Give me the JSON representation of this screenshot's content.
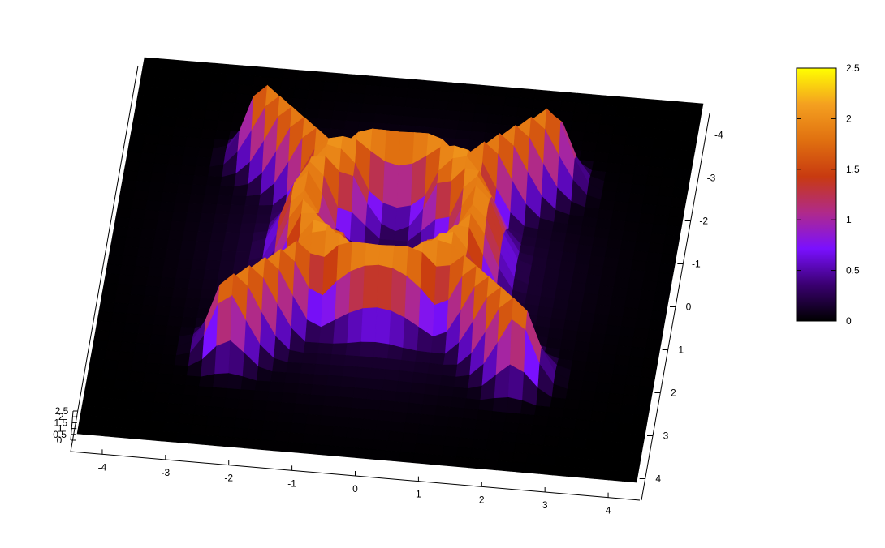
{
  "chart_data": {
    "type": "surface",
    "title": "",
    "view": "3d-pm3d",
    "x_axis": {
      "range": [
        -4.5,
        4.5
      ],
      "ticks": [
        -4,
        -3,
        -2,
        -1,
        0,
        1,
        2,
        3,
        4
      ]
    },
    "y_axis": {
      "range": [
        -4.5,
        4.5
      ],
      "ticks": [
        -4,
        -3,
        -2,
        -1,
        0,
        1,
        2,
        3,
        4
      ]
    },
    "z_axis": {
      "range": [
        0,
        2.5
      ],
      "ticks": [
        "0",
        "0.5",
        "1",
        "1.5",
        "2",
        "2.5"
      ]
    },
    "grid_resolution": 41,
    "surface_model": {
      "description_free": true,
      "rings": [
        {
          "center": [
            0,
            0
          ],
          "radius": 1.4,
          "width": 0.45,
          "height": 2.1
        }
      ],
      "arms": [
        {
          "direction": [
            1,
            1
          ],
          "from": 1.2,
          "to": 3.3,
          "width": 0.4,
          "height": 2.0
        },
        {
          "direction": [
            -1,
            1
          ],
          "from": 1.2,
          "to": 3.3,
          "width": 0.4,
          "height": 2.0
        },
        {
          "direction": [
            1,
            -1
          ],
          "from": 1.2,
          "to": 3.3,
          "width": 0.4,
          "height": 2.0
        },
        {
          "direction": [
            -1,
            -1
          ],
          "from": 1.2,
          "to": 3.3,
          "width": 0.4,
          "height": 2.0
        }
      ],
      "halo": {
        "sigma": 2.2,
        "height": 0.45
      }
    },
    "colorbar": {
      "range": [
        0,
        2.5
      ],
      "ticks": [
        "0",
        "0.5",
        "1",
        "1.5",
        "2",
        "2.5"
      ],
      "palette": [
        "#000000",
        "#3a0070",
        "#7a10ff",
        "#b02a8a",
        "#c83a10",
        "#e07010",
        "#f4a020",
        "#ffff00"
      ]
    },
    "legend": "right",
    "grid": false
  }
}
